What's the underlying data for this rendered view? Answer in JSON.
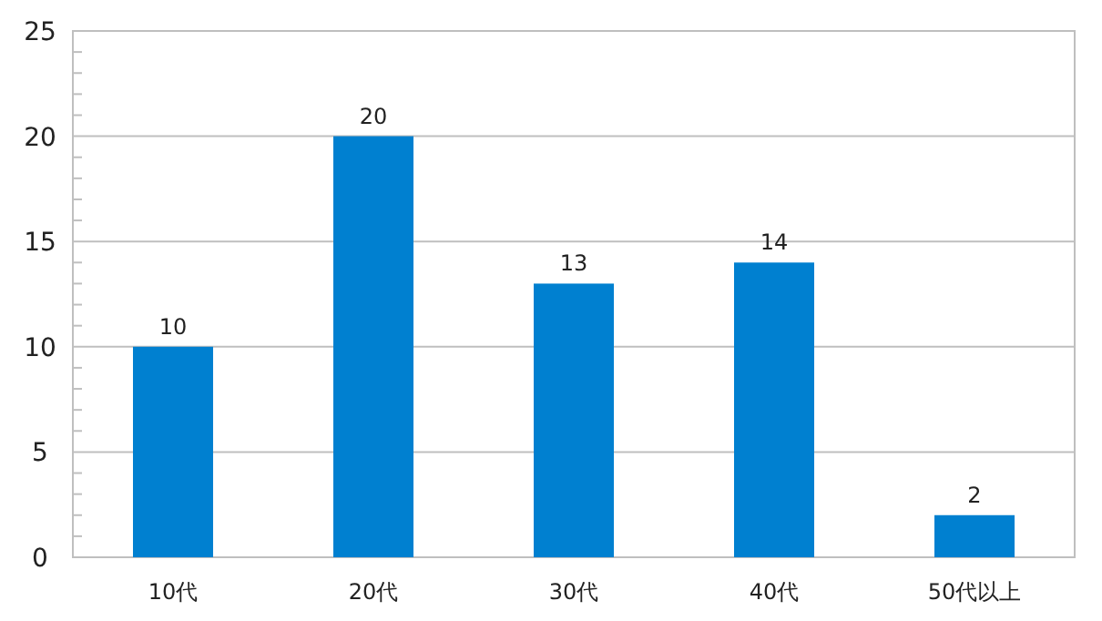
{
  "chart_data": {
    "type": "bar",
    "categories": [
      "10代",
      "20代",
      "30代",
      "40代",
      "50代以上"
    ],
    "values": [
      10,
      20,
      13,
      14,
      2
    ],
    "color": "#0080d0",
    "ylim": [
      0,
      25
    ],
    "yticks": [
      0,
      {
        "value": 1,
        "label": null
      },
      {
        "value": 2,
        "label": null
      },
      {
        "value": 3,
        "label": null
      },
      {
        "value": 4,
        "label": null
      },
      5,
      {
        "value": 6,
        "label": null
      },
      {
        "value": 7,
        "label": null
      },
      {
        "value": 8,
        "label": null
      },
      {
        "value": 9,
        "label": null
      },
      10,
      {
        "value": 11,
        "label": null
      },
      {
        "value": 12,
        "label": null
      },
      {
        "value": 13,
        "label": null
      },
      {
        "value": 14,
        "label": null
      },
      15,
      {
        "value": 16,
        "label": null
      },
      {
        "value": 17,
        "label": null
      },
      {
        "value": 18,
        "label": null
      },
      {
        "value": 19,
        "label": null
      },
      20,
      {
        "value": 21,
        "label": null
      },
      {
        "value": 22,
        "label": null
      },
      {
        "value": 23,
        "label": null
      },
      {
        "value": 24,
        "label": null
      },
      25
    ],
    "grid": "y",
    "data_labels": true
  }
}
